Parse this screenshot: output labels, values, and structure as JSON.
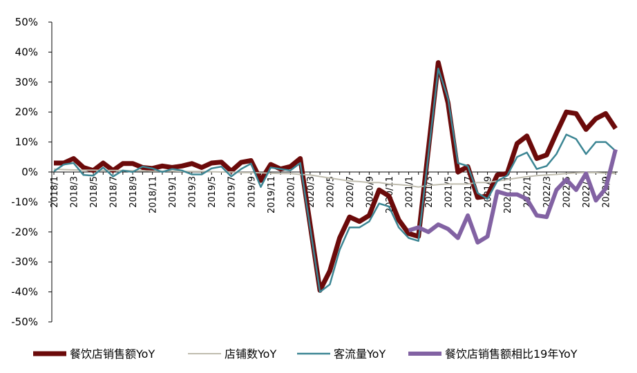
{
  "chart_data": {
    "type": "line",
    "ylim": [
      -0.5,
      0.5
    ],
    "y_ticks": [
      0.5,
      0.4,
      0.3,
      0.2,
      0.1,
      0,
      -0.1,
      -0.2,
      -0.3,
      -0.4,
      -0.5
    ],
    "y_tick_labels": [
      "50%",
      "40%",
      "30%",
      "20%",
      "10%",
      "0%",
      "-10%",
      "-20%",
      "-30%",
      "-40%",
      "-50%"
    ],
    "x_tick_labels": [
      {
        "index": 0,
        "label": "2018/1"
      },
      {
        "index": 2,
        "label": "2018/3"
      },
      {
        "index": 4,
        "label": "2018/5"
      },
      {
        "index": 6,
        "label": "2018/7"
      },
      {
        "index": 8,
        "label": "2018/9"
      },
      {
        "index": 10,
        "label": "2018/11"
      },
      {
        "index": 12,
        "label": "2019/1"
      },
      {
        "index": 14,
        "label": "2019/3"
      },
      {
        "index": 16,
        "label": "2019/5"
      },
      {
        "index": 18,
        "label": "2019/7"
      },
      {
        "index": 20,
        "label": "2019/9"
      },
      {
        "index": 22,
        "label": "2019/11"
      },
      {
        "index": 24,
        "label": "2020/1"
      },
      {
        "index": 26,
        "label": "2020/3"
      },
      {
        "index": 28,
        "label": "2020/5"
      },
      {
        "index": 30,
        "label": "2020/7"
      },
      {
        "index": 32,
        "label": "2020/9"
      },
      {
        "index": 34,
        "label": "2020/11"
      },
      {
        "index": 36,
        "label": "2021/1"
      },
      {
        "index": 38,
        "label": "2021/3"
      },
      {
        "index": 40,
        "label": "2021/5"
      },
      {
        "index": 42,
        "label": "2021/7"
      },
      {
        "index": 44,
        "label": "2021/9"
      },
      {
        "index": 46,
        "label": "2021/11"
      },
      {
        "index": 48,
        "label": "2022/1"
      },
      {
        "index": 50,
        "label": "2022/3"
      },
      {
        "index": 52,
        "label": "2022/5"
      },
      {
        "index": 54,
        "label": "2022/7"
      },
      {
        "index": 56,
        "label": "2022/9"
      }
    ],
    "x": [
      "2018/1",
      "2018/2",
      "2018/3",
      "2018/4",
      "2018/5",
      "2018/6",
      "2018/7",
      "2018/8",
      "2018/9",
      "2018/10",
      "2018/11",
      "2018/12",
      "2019/1",
      "2019/2",
      "2019/3",
      "2019/4",
      "2019/5",
      "2019/6",
      "2019/7",
      "2019/8",
      "2019/9",
      "2019/10",
      "2019/11",
      "2019/12",
      "2020/1",
      "2020/2",
      "2020/3",
      "2020/4",
      "2020/5",
      "2020/6",
      "2020/7",
      "2020/8",
      "2020/9",
      "2020/10",
      "2020/11",
      "2020/12",
      "2021/1",
      "2021/2",
      "2021/3",
      "2021/4",
      "2021/5",
      "2021/6",
      "2021/7",
      "2021/8",
      "2021/9",
      "2021/10",
      "2021/11",
      "2021/12",
      "2022/1",
      "2022/2",
      "2022/3",
      "2022/4",
      "2022/5",
      "2022/6",
      "2022/7",
      "2022/8",
      "2022/9",
      "2022/10"
    ],
    "series": [
      {
        "name": "餐饮店销售额YoY",
        "color": "#6b0a0a",
        "width": 7,
        "values": [
          0.03,
          0.03,
          0.045,
          0.015,
          0.005,
          0.03,
          0.005,
          0.028,
          0.028,
          0.015,
          0.012,
          0.02,
          0.015,
          0.02,
          0.028,
          0.015,
          0.03,
          0.033,
          0.003,
          0.032,
          0.038,
          -0.028,
          0.025,
          0.01,
          0.018,
          0.045,
          null,
          -0.395,
          -0.33,
          -0.22,
          -0.15,
          -0.165,
          -0.145,
          -0.06,
          -0.08,
          -0.16,
          -0.205,
          -0.215,
          null,
          0.365,
          0.23,
          0.0,
          0.018,
          -0.085,
          -0.08,
          -0.01,
          -0.005,
          0.095,
          0.12,
          0.045,
          0.057,
          0.13,
          0.2,
          0.195,
          0.142,
          0.178,
          0.195,
          0.145
        ]
      },
      {
        "name": "店铺数YoY",
        "color": "#bfbcae",
        "width": 2,
        "values": [
          0.01,
          0.008,
          0.007,
          0.006,
          0.006,
          0.005,
          0.005,
          0.005,
          0.004,
          0.004,
          0.003,
          0.003,
          0.003,
          0.002,
          0.002,
          0.002,
          0.001,
          0.0,
          0.0,
          -0.002,
          -0.002,
          -0.003,
          -0.004,
          -0.005,
          -0.005,
          -0.008,
          -0.01,
          -0.015,
          -0.02,
          -0.025,
          -0.03,
          -0.032,
          -0.035,
          -0.035,
          -0.04,
          -0.042,
          -0.045,
          -0.05,
          -0.045,
          -0.042,
          -0.04,
          -0.04,
          -0.04,
          -0.035,
          -0.035,
          -0.03,
          -0.025,
          -0.02,
          -0.016,
          -0.012,
          -0.01,
          -0.008,
          -0.005,
          -0.003,
          -0.002,
          -0.002,
          -0.004,
          -0.005
        ]
      },
      {
        "name": "客流量YoY",
        "color": "#3b8593",
        "width": 2.5,
        "values": [
          0.002,
          0.025,
          0.03,
          -0.01,
          -0.012,
          0.015,
          -0.015,
          0.005,
          0.0,
          0.018,
          0.012,
          0.0,
          0.01,
          0.005,
          -0.008,
          -0.008,
          0.012,
          0.018,
          -0.015,
          0.01,
          0.028,
          -0.05,
          0.015,
          0.01,
          0.005,
          0.03,
          null,
          -0.4,
          -0.375,
          -0.26,
          -0.185,
          -0.185,
          -0.165,
          -0.105,
          -0.115,
          -0.185,
          -0.22,
          -0.23,
          null,
          0.345,
          0.245,
          0.03,
          0.02,
          -0.07,
          -0.09,
          -0.03,
          -0.012,
          0.05,
          0.065,
          0.01,
          0.02,
          0.06,
          0.125,
          0.11,
          0.06,
          0.1,
          0.1,
          0.07
        ]
      },
      {
        "name": "餐饮店销售额相比19年YoY",
        "color": "#8262a3",
        "width": 6,
        "values": [
          null,
          null,
          null,
          null,
          null,
          null,
          null,
          null,
          null,
          null,
          null,
          null,
          null,
          null,
          null,
          null,
          null,
          null,
          null,
          null,
          null,
          null,
          null,
          null,
          null,
          null,
          null,
          null,
          null,
          null,
          null,
          null,
          null,
          null,
          null,
          null,
          -0.195,
          -0.185,
          -0.2,
          -0.175,
          -0.19,
          -0.22,
          -0.145,
          -0.235,
          -0.215,
          -0.065,
          -0.075,
          -0.075,
          -0.09,
          -0.145,
          -0.15,
          -0.06,
          -0.025,
          -0.06,
          -0.005,
          -0.095,
          -0.055,
          0.075
        ]
      }
    ],
    "legend_placement": "bottom",
    "grid": false
  }
}
